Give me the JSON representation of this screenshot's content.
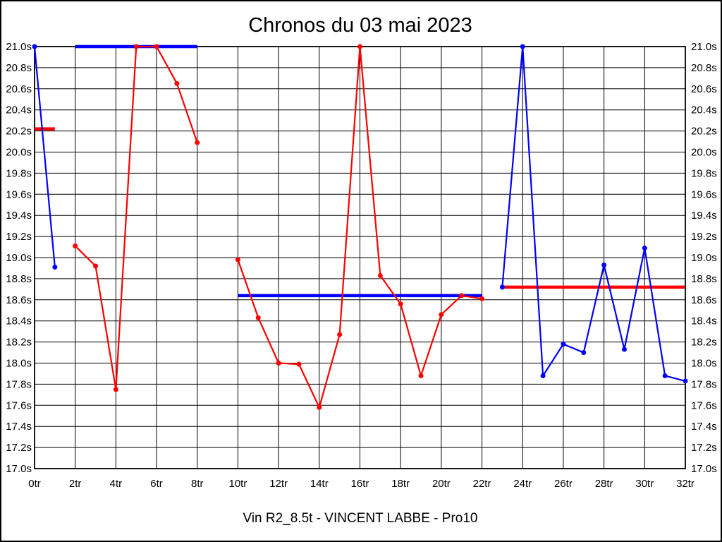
{
  "chart_data": {
    "type": "line",
    "title": "Chronos du 03 mai 2023",
    "subtitle": "Vin R2_8.5t - VINCENT LABBE - Pro10",
    "x_unit": "tr",
    "y_unit": "s",
    "xlim": [
      0,
      32
    ],
    "ylim": [
      17.0,
      21.0
    ],
    "x_tick_step": 2,
    "y_tick_step": 0.2,
    "grid": true,
    "legend": "none",
    "colors": {
      "red": "#ff0000",
      "blue": "#0000ff"
    },
    "series": [
      {
        "name": "blue-laps-run-1",
        "color": "blue",
        "points": [
          [
            0,
            21.0
          ],
          [
            1,
            18.91
          ]
        ]
      },
      {
        "name": "red-laps-run-1",
        "color": "red",
        "points": [
          [
            2,
            19.11
          ],
          [
            3,
            18.92
          ],
          [
            4,
            17.75
          ],
          [
            5,
            21.0
          ],
          [
            6,
            21.0
          ],
          [
            7,
            20.65
          ],
          [
            8,
            20.09
          ]
        ]
      },
      {
        "name": "red-laps-run-2",
        "color": "red",
        "points": [
          [
            10,
            18.98
          ],
          [
            11,
            18.43
          ],
          [
            12,
            18.0
          ],
          [
            13,
            17.99
          ],
          [
            14,
            17.58
          ],
          [
            15,
            18.27
          ],
          [
            16,
            21.0
          ],
          [
            17,
            18.83
          ],
          [
            18,
            18.56
          ],
          [
            19,
            17.88
          ],
          [
            20,
            18.46
          ],
          [
            21,
            18.64
          ],
          [
            22,
            18.61
          ]
        ]
      },
      {
        "name": "blue-laps-run-2",
        "color": "blue",
        "points": [
          [
            23,
            18.72
          ],
          [
            24,
            21.0
          ],
          [
            25,
            17.88
          ],
          [
            26,
            18.18
          ],
          [
            27,
            18.1
          ],
          [
            28,
            18.93
          ],
          [
            29,
            18.13
          ],
          [
            30,
            19.09
          ],
          [
            31,
            17.88
          ],
          [
            32,
            17.83
          ]
        ]
      }
    ],
    "mean_lines": [
      {
        "name": "run-1-mean",
        "color": "red",
        "y": 20.22,
        "x_start": 0,
        "x_end": 1
      },
      {
        "name": "run-2-mean",
        "color": "blue",
        "y": 21.0,
        "x_start": 2,
        "x_end": 8
      },
      {
        "name": "run-3-mean",
        "color": "blue",
        "y": 18.64,
        "x_start": 10,
        "x_end": 22
      },
      {
        "name": "run-4-mean",
        "color": "red",
        "y": 18.72,
        "x_start": 23,
        "x_end": 32
      }
    ]
  }
}
